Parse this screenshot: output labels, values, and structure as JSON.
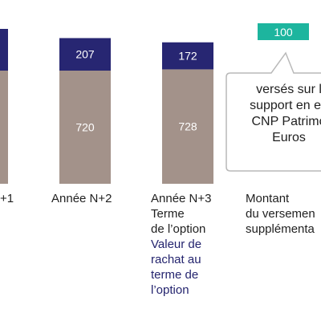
{
  "colors": {
    "navy": "#272672",
    "taupe": "#a3928a",
    "teal": "#1db59e",
    "callout_border": "#b9b9b9",
    "text": "#1f1f1f",
    "accent_text": "#24246e"
  },
  "chart_data": {
    "type": "bar",
    "stacked": true,
    "title": "",
    "xlabel": "",
    "ylabel": "",
    "categories": [
      "+1",
      "Année N+2",
      "Année N+3",
      "Montant du versemen"
    ],
    "series": [
      {
        "values": [
          null,
          720,
          728,
          null
        ],
        "color": "#a3928a"
      },
      {
        "values": [
          null,
          207,
          172,
          null
        ],
        "color": "#272672"
      },
      {
        "values": [
          null,
          null,
          null,
          100
        ],
        "color": "#1db59e"
      }
    ],
    "grid": false,
    "legend": "none"
  },
  "labels": {
    "cat1": [
      "+1"
    ],
    "cat2": [
      "Année N+2"
    ],
    "cat3": [
      "Année N+3",
      "Terme",
      "de l’option"
    ],
    "cat3_accent": [
      "Valeur de",
      "rachat au",
      "terme de",
      "l’option"
    ],
    "cat4": [
      "Montant",
      "du versemen",
      "supplémenta"
    ]
  },
  "callout": {
    "lines": [
      "versés sur l",
      "support en eu",
      "CNP Patrimo",
      "Euros"
    ]
  }
}
